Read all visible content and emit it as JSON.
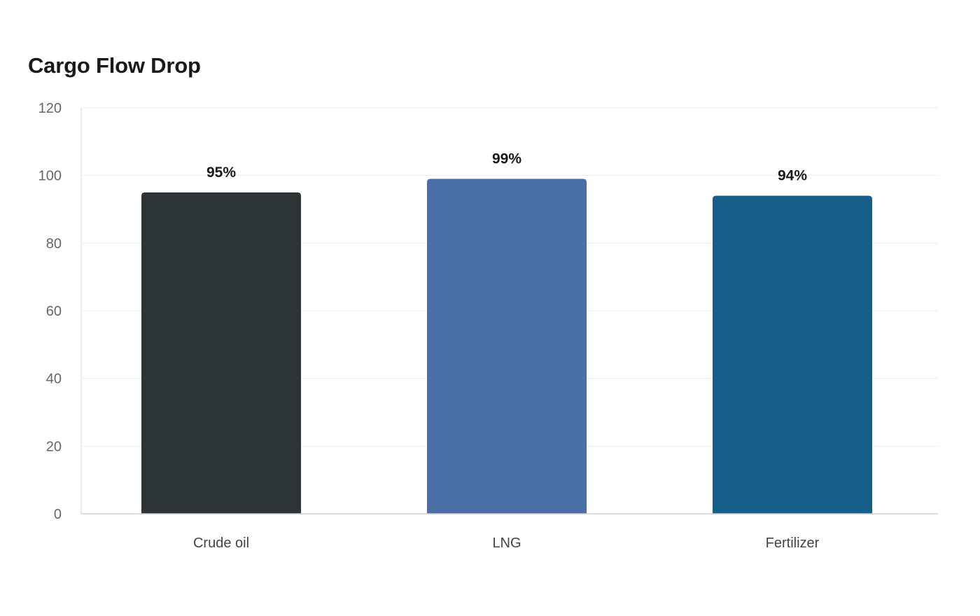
{
  "chart_data": {
    "type": "bar",
    "title": "Cargo Flow Drop",
    "xlabel": "",
    "ylabel": "",
    "categories": [
      "Crude oil",
      "LNG",
      "Fertilizer"
    ],
    "values": [
      95,
      99,
      94
    ],
    "data_labels": [
      "95%",
      "99%",
      "94%"
    ],
    "colors": [
      "#2d3436",
      "#4a6fa5",
      "#175e88"
    ],
    "ylim": [
      0,
      120
    ],
    "yticks": [
      0,
      20,
      40,
      60,
      80,
      100,
      120
    ],
    "grid": true,
    "legend": "none"
  }
}
